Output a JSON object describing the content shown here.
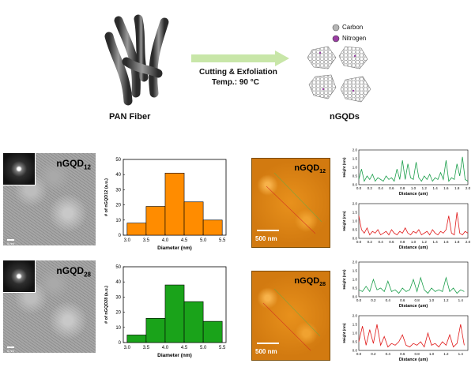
{
  "scheme": {
    "left_label": "PAN Fiber",
    "arrow_top": "Cutting & Exfoliation",
    "arrow_bottom": "Temp.: 90 °C",
    "right_label": "nGQDs",
    "legend": [
      {
        "name": "Carbon",
        "color": "#b5b5b5"
      },
      {
        "name": "Nitrogen",
        "color": "#9a3ea3"
      }
    ]
  },
  "tem": [
    {
      "label_main": "nGQD",
      "label_sub": "12",
      "scale_text": "5 nm"
    },
    {
      "label_main": "nGQD",
      "label_sub": "28",
      "scale_text": "5 nm"
    }
  ],
  "afm": [
    {
      "label_main": "nGQD",
      "label_sub": "12",
      "scale_text": "500 nm"
    },
    {
      "label_main": "nGQD",
      "label_sub": "28",
      "scale_text": "500 nm"
    }
  ],
  "chart_data": [
    {
      "type": "bar",
      "title": "",
      "xlabel": "Diameter (nm)",
      "ylabel": "# of nGQD12 (a.u.)",
      "bin_edges": [
        3.0,
        3.5,
        4.0,
        4.5,
        5.0,
        5.5
      ],
      "values": [
        8,
        19,
        41,
        22,
        10
      ],
      "xlim": [
        2.9,
        5.6
      ],
      "ylim": [
        0,
        50
      ],
      "xticks": [
        "3.0",
        "3.5",
        "4.0",
        "4.5",
        "5.0",
        "5.5"
      ],
      "yticks": [
        "0",
        "10",
        "20",
        "30",
        "40",
        "50"
      ],
      "color": "#ff8c00"
    },
    {
      "type": "bar",
      "title": "",
      "xlabel": "Diameter (nm)",
      "ylabel": "# of nGQD28 (a.u.)",
      "bin_edges": [
        3.0,
        3.5,
        4.0,
        4.5,
        5.0,
        5.5
      ],
      "values": [
        5,
        16,
        38,
        27,
        14
      ],
      "xlim": [
        2.9,
        5.6
      ],
      "ylim": [
        0,
        50
      ],
      "xticks": [
        "3.0",
        "3.5",
        "4.0",
        "4.5",
        "5.0",
        "5.5"
      ],
      "yticks": [
        "0",
        "10",
        "20",
        "30",
        "40",
        "50"
      ],
      "color": "#1aa31a"
    },
    {
      "type": "line",
      "xlabel": "Distance (um)",
      "ylabel": "Height (nm)",
      "xlim": [
        0,
        2.0
      ],
      "ylim": [
        0,
        2.0
      ],
      "xticks": [
        "0.0",
        "0.2",
        "0.4",
        "0.6",
        "0.8",
        "1.0",
        "1.2",
        "1.4",
        "1.6",
        "1.8",
        "2.0"
      ],
      "yticks": [
        "0.0",
        "0.5",
        "1.0",
        "1.5",
        "2.0"
      ],
      "color": "#1a9e4a",
      "x": [
        0,
        0.05,
        0.1,
        0.15,
        0.2,
        0.25,
        0.3,
        0.35,
        0.4,
        0.45,
        0.5,
        0.55,
        0.6,
        0.65,
        0.7,
        0.75,
        0.8,
        0.85,
        0.9,
        0.95,
        1.0,
        1.05,
        1.1,
        1.15,
        1.2,
        1.25,
        1.3,
        1.35,
        1.4,
        1.45,
        1.5,
        1.55,
        1.6,
        1.65,
        1.7,
        1.75,
        1.8,
        1.85,
        1.9,
        1.95,
        2.0
      ],
      "y": [
        0.3,
        0.9,
        0.2,
        0.5,
        0.3,
        0.6,
        0.2,
        0.4,
        0.3,
        0.2,
        0.5,
        0.3,
        0.4,
        0.2,
        0.9,
        0.3,
        1.4,
        0.3,
        1.2,
        0.4,
        0.3,
        1.3,
        0.4,
        0.2,
        0.5,
        0.3,
        0.6,
        0.2,
        0.4,
        0.3,
        0.7,
        0.3,
        1.4,
        0.2,
        0.4,
        0.3,
        1.2,
        0.5,
        1.6,
        0.3,
        0.2
      ]
    },
    {
      "type": "line",
      "xlabel": "Distance (um)",
      "ylabel": "Height (nm)",
      "xlim": [
        0,
        2.0
      ],
      "ylim": [
        0,
        2.0
      ],
      "xticks": [
        "0.0",
        "0.2",
        "0.4",
        "0.6",
        "0.8",
        "1.0",
        "1.2",
        "1.4",
        "1.6",
        "1.8",
        "2.0"
      ],
      "yticks": [
        "0.0",
        "0.5",
        "1.0",
        "1.5",
        "2.0"
      ],
      "color": "#e01818",
      "x": [
        0,
        0.05,
        0.1,
        0.15,
        0.2,
        0.25,
        0.3,
        0.35,
        0.4,
        0.45,
        0.5,
        0.55,
        0.6,
        0.65,
        0.7,
        0.75,
        0.8,
        0.85,
        0.9,
        0.95,
        1.0,
        1.05,
        1.1,
        1.15,
        1.2,
        1.25,
        1.3,
        1.35,
        1.4,
        1.45,
        1.5,
        1.55,
        1.6,
        1.65,
        1.7,
        1.75,
        1.8,
        1.85,
        1.9,
        1.95,
        2.0
      ],
      "y": [
        1.3,
        0.5,
        0.3,
        0.6,
        0.2,
        0.4,
        0.3,
        0.5,
        0.2,
        0.3,
        0.4,
        0.2,
        0.5,
        0.3,
        0.2,
        0.4,
        0.3,
        0.6,
        0.3,
        0.2,
        0.4,
        0.3,
        0.5,
        0.2,
        0.3,
        0.4,
        0.2,
        0.5,
        0.3,
        0.2,
        0.4,
        0.3,
        0.5,
        1.3,
        0.3,
        0.2,
        1.5,
        0.3,
        0.2,
        0.4,
        0.3
      ]
    },
    {
      "type": "line",
      "xlabel": "Distance (um)",
      "ylabel": "Height (nm)",
      "xlim": [
        0,
        1.5
      ],
      "ylim": [
        0,
        2.0
      ],
      "xticks": [
        "0.0",
        "0.2",
        "0.4",
        "0.6",
        "0.8",
        "1.0",
        "1.2",
        "1.4"
      ],
      "yticks": [
        "0.0",
        "0.5",
        "1.0",
        "1.5",
        "2.0"
      ],
      "color": "#1a9e4a",
      "x": [
        0,
        0.05,
        0.1,
        0.15,
        0.2,
        0.25,
        0.3,
        0.35,
        0.4,
        0.45,
        0.5,
        0.55,
        0.6,
        0.65,
        0.7,
        0.75,
        0.8,
        0.85,
        0.9,
        0.95,
        1.0,
        1.05,
        1.1,
        1.15,
        1.2,
        1.25,
        1.3,
        1.35,
        1.4,
        1.45
      ],
      "y": [
        0.4,
        0.3,
        0.6,
        0.3,
        1.0,
        0.4,
        0.5,
        0.3,
        0.9,
        0.3,
        0.4,
        0.2,
        0.5,
        0.3,
        0.4,
        1.0,
        0.3,
        1.1,
        0.4,
        0.2,
        0.5,
        0.3,
        0.4,
        0.3,
        1.1,
        0.3,
        0.5,
        0.2,
        0.4,
        0.3
      ]
    },
    {
      "type": "line",
      "xlabel": "Distance (um)",
      "ylabel": "Height (nm)",
      "xlim": [
        0,
        1.5
      ],
      "ylim": [
        0,
        2.0
      ],
      "xticks": [
        "0.0",
        "0.2",
        "0.4",
        "0.6",
        "0.8",
        "1.0",
        "1.2",
        "1.4"
      ],
      "yticks": [
        "0.0",
        "0.5",
        "1.0",
        "1.5",
        "2.0"
      ],
      "color": "#e01818",
      "x": [
        0,
        0.05,
        0.1,
        0.15,
        0.2,
        0.25,
        0.3,
        0.35,
        0.4,
        0.45,
        0.5,
        0.55,
        0.6,
        0.65,
        0.7,
        0.75,
        0.8,
        0.85,
        0.9,
        0.95,
        1.0,
        1.05,
        1.1,
        1.15,
        1.2,
        1.25,
        1.3,
        1.35,
        1.4,
        1.45
      ],
      "y": [
        0.5,
        1.4,
        0.3,
        1.2,
        0.4,
        1.5,
        0.3,
        0.8,
        0.2,
        0.4,
        0.3,
        0.5,
        0.9,
        0.3,
        0.2,
        0.4,
        0.3,
        0.5,
        0.2,
        1.0,
        0.3,
        0.4,
        0.2,
        0.5,
        0.3,
        0.9,
        0.2,
        0.4,
        1.5,
        0.3
      ]
    }
  ]
}
